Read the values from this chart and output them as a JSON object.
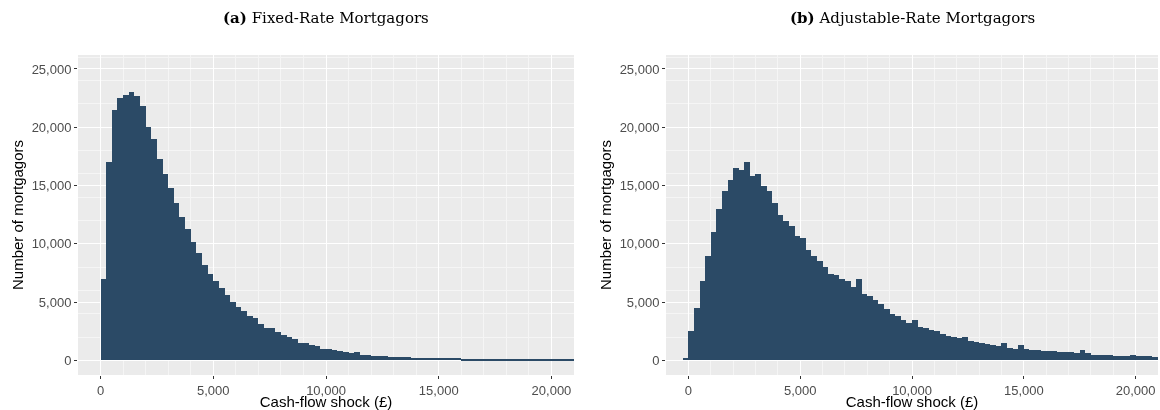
{
  "chart_data": [
    {
      "type": "histogram",
      "title": "(a) Fixed-Rate Mortgagors",
      "xlabel": "Cash-flow shock (£)",
      "ylabel": "Number of mortgagors",
      "color": "#2b4a66",
      "grid": true,
      "bins": [
        0,
        250,
        500,
        750,
        1000,
        1250,
        1500,
        1750,
        2000,
        2250,
        2500,
        2750,
        3000,
        3250,
        3500,
        3750,
        4000,
        4250,
        4500,
        4750,
        5000,
        5250,
        5500,
        5750,
        6000,
        6250,
        6500,
        6750,
        7000,
        7250,
        7500,
        7750,
        8000,
        8250,
        8500,
        8750,
        9000,
        9250,
        9500,
        9750,
        10000,
        10250,
        10500,
        10750,
        11000,
        11250,
        11500,
        11750,
        12000,
        12250,
        12500,
        12750,
        13000,
        13250,
        13500,
        13750,
        14000,
        14250,
        14500,
        14750,
        15000,
        15250,
        15500,
        15750,
        16000,
        16250,
        16500,
        16750,
        17000,
        17250,
        17500,
        17750,
        18000,
        18250,
        18500,
        18750,
        19000,
        19250,
        19500,
        19750,
        20000,
        20250,
        20500,
        20750,
        21000
      ],
      "values": [
        7000,
        17000,
        21500,
        22500,
        22800,
        23000,
        22700,
        21800,
        20000,
        19000,
        17300,
        16000,
        14800,
        13500,
        12300,
        11300,
        10200,
        9200,
        8200,
        7400,
        6800,
        6200,
        5600,
        5000,
        4600,
        4200,
        3800,
        3600,
        3100,
        2800,
        2800,
        2400,
        2200,
        2000,
        1800,
        1500,
        1500,
        1300,
        1200,
        1000,
        1000,
        900,
        800,
        700,
        600,
        700,
        500,
        500,
        400,
        400,
        400,
        300,
        300,
        300,
        300,
        200,
        200,
        200,
        200,
        200,
        200,
        200,
        200,
        200,
        100,
        100,
        100,
        100,
        100,
        100,
        100,
        100,
        100,
        100,
        100,
        100,
        100,
        100,
        100,
        100,
        100,
        100,
        100,
        100
      ],
      "xlim": [
        -1000,
        21000
      ],
      "ylim": [
        -1250,
        26200
      ],
      "xticks": [
        {
          "value": 0,
          "label": "0"
        },
        {
          "value": 5000,
          "label": "5,000"
        },
        {
          "value": 10000,
          "label": "10,000"
        },
        {
          "value": 15000,
          "label": "15,000"
        },
        {
          "value": 20000,
          "label": "20,000"
        }
      ],
      "yticks": [
        {
          "value": 0,
          "label": "0"
        },
        {
          "value": 5000,
          "label": "5,000"
        },
        {
          "value": 10000,
          "label": "10,000"
        },
        {
          "value": 15000,
          "label": "15,000"
        },
        {
          "value": 20000,
          "label": "20,000"
        },
        {
          "value": 25000,
          "label": "25,000"
        }
      ]
    },
    {
      "type": "histogram",
      "title": "(b) Adjustable-Rate Mortgagors",
      "xlabel": "Cash-flow shock (£)",
      "ylabel": "Number of mortgagors",
      "color": "#2b4a66",
      "grid": true,
      "bins": [
        -750,
        -500,
        -250,
        0,
        250,
        500,
        750,
        1000,
        1250,
        1500,
        1750,
        2000,
        2250,
        2500,
        2750,
        3000,
        3250,
        3500,
        3750,
        4000,
        4250,
        4500,
        4750,
        5000,
        5250,
        5500,
        5750,
        6000,
        6250,
        6500,
        6750,
        7000,
        7250,
        7500,
        7750,
        8000,
        8250,
        8500,
        8750,
        9000,
        9250,
        9500,
        9750,
        10000,
        10250,
        10500,
        10750,
        11000,
        11250,
        11500,
        11750,
        12000,
        12250,
        12500,
        12750,
        13000,
        13250,
        13500,
        13750,
        14000,
        14250,
        14500,
        14750,
        15000,
        15250,
        15500,
        15750,
        16000,
        16250,
        16500,
        16750,
        17000,
        17250,
        17500,
        17750,
        18000,
        18250,
        18500,
        18750,
        19000,
        19250,
        19500,
        19750,
        20000,
        20250,
        20500,
        20750,
        21000
      ],
      "values": [
        0,
        0,
        200,
        2500,
        4500,
        6800,
        9000,
        11000,
        13000,
        14500,
        15500,
        16500,
        16300,
        17000,
        15800,
        16000,
        15000,
        14500,
        13500,
        12500,
        12000,
        11500,
        10700,
        10500,
        9500,
        9000,
        8500,
        8000,
        7400,
        7300,
        7000,
        6800,
        6300,
        7000,
        5700,
        5500,
        5200,
        4800,
        4400,
        4000,
        3800,
        3500,
        3200,
        3500,
        2900,
        2800,
        2600,
        2500,
        2300,
        2100,
        2000,
        1900,
        2000,
        1700,
        1600,
        1500,
        1400,
        1300,
        1200,
        1500,
        1100,
        1000,
        1300,
        1000,
        900,
        900,
        800,
        800,
        800,
        700,
        700,
        700,
        600,
        900,
        600,
        500,
        500,
        500,
        500,
        400,
        400,
        400,
        500,
        400,
        400,
        400,
        300
      ],
      "xlim": [
        -1000,
        21000
      ],
      "ylim": [
        -1250,
        26200
      ],
      "xticks": [
        {
          "value": 0,
          "label": "0"
        },
        {
          "value": 5000,
          "label": "5,000"
        },
        {
          "value": 10000,
          "label": "10,000"
        },
        {
          "value": 15000,
          "label": "15,000"
        },
        {
          "value": 20000,
          "label": "20,000"
        }
      ],
      "yticks": [
        {
          "value": 0,
          "label": "0"
        },
        {
          "value": 5000,
          "label": "5,000"
        },
        {
          "value": 10000,
          "label": "10,000"
        },
        {
          "value": 15000,
          "label": "15,000"
        },
        {
          "value": 20000,
          "label": "20,000"
        },
        {
          "value": 25000,
          "label": "25,000"
        }
      ]
    }
  ]
}
